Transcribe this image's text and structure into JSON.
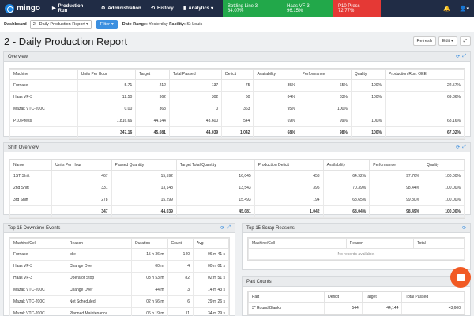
{
  "app": {
    "name": "mingo"
  },
  "nav": [
    {
      "label": "Production Run",
      "icon": "play-icon"
    },
    {
      "label": "Administration",
      "icon": "gear-icon"
    },
    {
      "label": "History",
      "icon": "history-icon"
    },
    {
      "label": "Analytics",
      "icon": "chart-icon"
    }
  ],
  "badges": [
    {
      "label": "Bottling Line 3 - 84.07%",
      "color": "#22a84a"
    },
    {
      "label": "Haas VF-3 - 96.15%",
      "color": "#22a84a"
    },
    {
      "label": "P10 Press - 72.77%",
      "color": "#e53935"
    }
  ],
  "subbar": {
    "dashboard_label": "Dashboard",
    "dashboard_value": "2 - Daily Production Report",
    "filter_label": "Filter",
    "range_label": "Date Range:",
    "range_value": "Yesterday",
    "facility_label": "Facility:",
    "facility_value": "St Louis"
  },
  "page": {
    "title": "2 - Daily Production Report",
    "refresh": "Refresh",
    "edit": "Edit"
  },
  "overview": {
    "title": "Overview",
    "headers": [
      "Machine",
      "Units Per Hour",
      "Target",
      "Total Passed",
      "Deficit",
      "Availability",
      "Performance",
      "Quality",
      "Production Run: OEE"
    ],
    "rows": [
      [
        "Furnace",
        "5.71",
        "212",
        "137",
        "75",
        "35%",
        "65%",
        "100%",
        "22.57%"
      ],
      [
        "Haas VF-3",
        "12.50",
        "362",
        "302",
        "60",
        "84%",
        "83%",
        "100%",
        "69.86%"
      ],
      [
        "Mazak VTC-200C",
        "0.00",
        "363",
        "0",
        "363",
        "95%",
        "100%",
        "",
        ""
      ],
      [
        "P10 Press",
        "1,816.66",
        "44,144",
        "43,600",
        "544",
        "69%",
        "99%",
        "100%",
        "68.16%"
      ]
    ],
    "total": [
      "",
      "347.16",
      "45,081",
      "44,039",
      "1,042",
      "68%",
      "98%",
      "100%",
      "67.02%"
    ]
  },
  "shift": {
    "title": "Shift Overview",
    "headers": [
      "Name",
      "Units Per Hour",
      "Passed Quantity",
      "Target Total Quantity",
      "Production Deficit",
      "Availability",
      "Performance",
      "Quality"
    ],
    "rows": [
      [
        "1ST Shift",
        "467",
        "15,592",
        "16,045",
        "453",
        "64.92%",
        "97.76%",
        "100.00%"
      ],
      [
        "2nd Shift",
        "331",
        "13,148",
        "13,543",
        "395",
        "70.39%",
        "98.44%",
        "100.00%"
      ],
      [
        "3rd Shift",
        "278",
        "15,299",
        "15,493",
        "194",
        "68.65%",
        "99.30%",
        "100.00%"
      ]
    ],
    "total": [
      "",
      "347",
      "44,039",
      "45,081",
      "1,042",
      "68.04%",
      "98.49%",
      "100.00%"
    ]
  },
  "downtime": {
    "title": "Top 15 Downtime Events",
    "headers": [
      "Machine/Cell",
      "Reason",
      "Duration",
      "Count",
      "Avg"
    ],
    "rows": [
      [
        "Furnace",
        "Idle",
        "15 h 36 m",
        "140",
        "06 m 41 s"
      ],
      [
        "Haas VF-3",
        "Change Over",
        "00 m",
        "4",
        "00 m 01 s"
      ],
      [
        "Haas VF-3",
        "Operator Stop",
        "03 h 53 m",
        "82",
        "02 m 51 s"
      ],
      [
        "Mazak VTC-200C",
        "Change Over",
        "44 m",
        "3",
        "14 m 43 s"
      ],
      [
        "Mazak VTC-200C",
        "Not Scheduled",
        "02 h 56 m",
        "6",
        "29 m 26 s"
      ],
      [
        "Mazak VTC-200C",
        "Planned Maintenance",
        "06 h 19 m",
        "11",
        "34 m 29 s"
      ]
    ]
  },
  "scrap": {
    "title": "Top 15 Scrap Reasons",
    "headers": [
      "Machine/Cell",
      "Reason",
      "Total"
    ],
    "empty": "No records available."
  },
  "parts": {
    "title": "Part Counts",
    "headers": [
      "Part",
      "Deficit",
      "Target",
      "Total Passed"
    ],
    "rows": [
      [
        "3\" Round Blanks",
        "544",
        "44,144",
        "43,600"
      ]
    ]
  }
}
